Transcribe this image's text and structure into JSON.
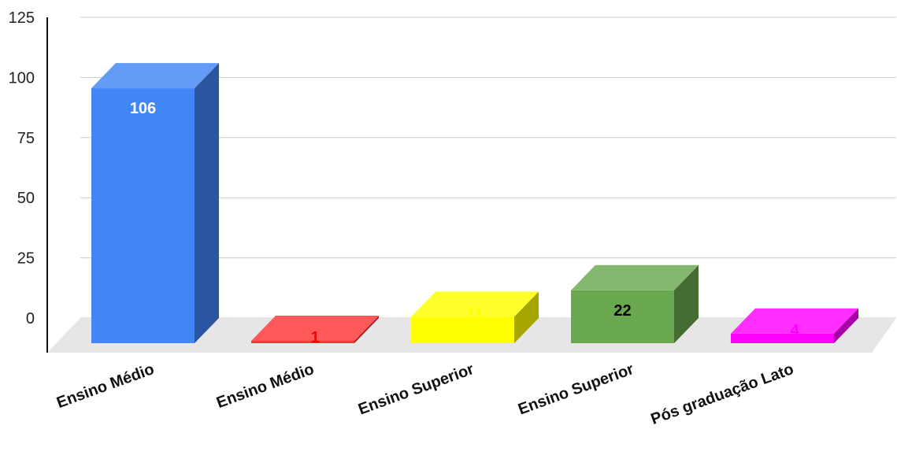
{
  "chart_data": {
    "type": "bar",
    "style": "3d",
    "title": "",
    "xlabel": "",
    "ylabel": "",
    "categories": [
      "Ensino Médio",
      "Ensino Médio",
      "Ensino Superior",
      "Ensino Superior",
      "Pós graduação Lato"
    ],
    "values": [
      106,
      1,
      11,
      22,
      4
    ],
    "ylim": [
      0,
      125
    ],
    "yticks": [
      0,
      25,
      50,
      75,
      100,
      125
    ],
    "grid": true,
    "legend": "none",
    "colors": [
      "#4285f4",
      "#ff3333",
      "#ffff00",
      "#6aa84f",
      "#ff00ff"
    ],
    "label_colors": [
      "#ffffff",
      "#ff0000",
      "#ffff00",
      "#000000",
      "#ff00ff"
    ]
  }
}
